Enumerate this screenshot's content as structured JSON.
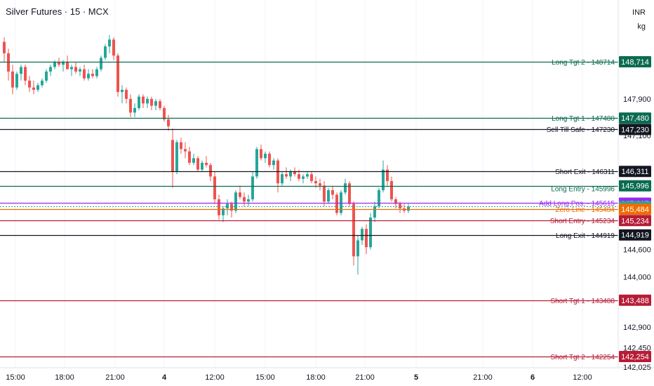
{
  "header": {
    "title": "Silver Futures · 15 · MCX"
  },
  "axis_units": {
    "currency": "INR",
    "unit": "kg"
  },
  "chart_data": {
    "type": "candlestick",
    "title": "Silver Futures · 15 · MCX",
    "ylim": [
      141800,
      149700
    ],
    "price_ticks": [
      "147,900",
      "147,100",
      "144,600",
      "144,000",
      "142,900",
      "142,450",
      "142,025"
    ],
    "price_tick_values": [
      147900,
      147100,
      144600,
      144000,
      142900,
      142450,
      142025
    ],
    "time_ticks": [
      "15:00",
      "18:00",
      "21:00",
      "4",
      "12:00",
      "15:00",
      "18:00",
      "21:00",
      "5",
      "21:00",
      "6",
      "12:00"
    ],
    "time_tick_bold": [
      false,
      false,
      false,
      true,
      false,
      false,
      false,
      false,
      true,
      false,
      true,
      false
    ],
    "levels": [
      {
        "label": "Long Tgt 2 - 148714",
        "value": 148714,
        "tag": "148,714",
        "color": "#0a6b50",
        "style": "solid"
      },
      {
        "label": "Long Tgt 1 - 147480",
        "value": 147480,
        "tag": "147,480",
        "color": "#0a6b50",
        "style": "solid"
      },
      {
        "label": "Sell Till Safe - 147230",
        "value": 147230,
        "tag": "147,230",
        "color": "#131722",
        "style": "solid"
      },
      {
        "label": "Short Exit - 146311",
        "value": 146311,
        "tag": "146,311",
        "color": "#131722",
        "style": "solid"
      },
      {
        "label": "",
        "value": 145996,
        "tag": "145,996",
        "color": "#0a6b50",
        "style": "solid"
      },
      {
        "label": "Long Entry - 145996",
        "value": 145996,
        "tag": "",
        "color": "#0a6b50",
        "style": "none"
      },
      {
        "label": "Add Long Pos. - 145615",
        "value": 145615,
        "tag": "145,615",
        "color": "#9c27f0",
        "style": "solid"
      },
      {
        "label": "",
        "value": 145540,
        "tag": "145,540",
        "color": "#26a69a",
        "style": "dotted"
      },
      {
        "label": "Zero Line - 145484",
        "value": 145484,
        "tag": "145,484",
        "color": "#ef6c00",
        "style": "solid"
      },
      {
        "label": "Short Entry - 145234",
        "value": 145234,
        "tag": "145,234",
        "color": "#b71c36",
        "style": "solid"
      },
      {
        "label": "Long Exit - 144919",
        "value": 144919,
        "tag": "144,919",
        "color": "#131722",
        "style": "solid"
      },
      {
        "label": "Short Tgt 1 - 143488",
        "value": 143488,
        "tag": "143,488",
        "color": "#b71c36",
        "style": "solid"
      },
      {
        "label": "Short Tgt 2 - 142254",
        "value": 142254,
        "tag": "142,254",
        "color": "#b71c36",
        "style": "solid"
      }
    ],
    "ohlc": [
      [
        149150,
        149250,
        148700,
        148900
      ],
      [
        148900,
        149000,
        148300,
        148500
      ],
      [
        148500,
        148650,
        148000,
        148150
      ],
      [
        148150,
        148500,
        148100,
        148450
      ],
      [
        148450,
        148650,
        148300,
        148600
      ],
      [
        148600,
        148650,
        148200,
        148300
      ],
      [
        148300,
        148400,
        148050,
        148150
      ],
      [
        148150,
        148300,
        148000,
        148100
      ],
      [
        148100,
        148250,
        148050,
        148200
      ],
      [
        148200,
        148350,
        148150,
        148300
      ],
      [
        148300,
        148550,
        148250,
        148500
      ],
      [
        148500,
        148650,
        148400,
        148600
      ],
      [
        148600,
        148750,
        148550,
        148700
      ],
      [
        148700,
        148800,
        148600,
        148650
      ],
      [
        148650,
        148750,
        148500,
        148700
      ],
      [
        148700,
        148850,
        148550,
        148550
      ],
      [
        148550,
        148650,
        148400,
        148600
      ],
      [
        148600,
        148700,
        148450,
        148500
      ],
      [
        148500,
        148600,
        148400,
        148550
      ],
      [
        148550,
        148650,
        148300,
        148350
      ],
      [
        148350,
        148550,
        148300,
        148450
      ],
      [
        148450,
        148550,
        148350,
        148400
      ],
      [
        148400,
        148600,
        148350,
        148550
      ],
      [
        148550,
        148850,
        148500,
        148800
      ],
      [
        148800,
        149100,
        148750,
        149050
      ],
      [
        149050,
        149300,
        148900,
        149200
      ],
      [
        149200,
        149250,
        148750,
        148850
      ],
      [
        148850,
        148900,
        147950,
        148050
      ],
      [
        148050,
        148200,
        147800,
        148100
      ],
      [
        148100,
        148150,
        147800,
        147900
      ],
      [
        147900,
        148000,
        147500,
        147600
      ],
      [
        147600,
        147800,
        147500,
        147700
      ],
      [
        147700,
        148000,
        147650,
        147950
      ],
      [
        147950,
        148000,
        147700,
        147800
      ],
      [
        147800,
        147950,
        147700,
        147900
      ],
      [
        147900,
        147950,
        147650,
        147750
      ],
      [
        147750,
        147900,
        147650,
        147850
      ],
      [
        147850,
        147900,
        147650,
        147700
      ],
      [
        147700,
        147750,
        147400,
        147450
      ],
      [
        147450,
        147550,
        147200,
        147300
      ],
      [
        147000,
        147250,
        145950,
        146300
      ],
      [
        146300,
        147000,
        146250,
        146950
      ],
      [
        146950,
        147050,
        146700,
        146800
      ],
      [
        146800,
        146950,
        146600,
        146750
      ],
      [
        146750,
        146850,
        146450,
        146500
      ],
      [
        146500,
        146700,
        146450,
        146600
      ],
      [
        146600,
        146650,
        146300,
        146350
      ],
      [
        146350,
        146550,
        146300,
        146500
      ],
      [
        146500,
        146650,
        146400,
        146450
      ],
      [
        146450,
        146500,
        146100,
        146200
      ],
      [
        146200,
        146300,
        145600,
        145700
      ],
      [
        145700,
        145800,
        145250,
        145350
      ],
      [
        145350,
        145550,
        145200,
        145500
      ],
      [
        145500,
        145700,
        145350,
        145600
      ],
      [
        145600,
        145650,
        145300,
        145450
      ],
      [
        145450,
        145900,
        145400,
        145850
      ],
      [
        145850,
        146000,
        145700,
        145750
      ],
      [
        145750,
        145850,
        145550,
        145650
      ],
      [
        145650,
        145800,
        145550,
        145700
      ],
      [
        145700,
        146300,
        145650,
        146200
      ],
      [
        146200,
        146850,
        146150,
        146800
      ],
      [
        146800,
        146900,
        146550,
        146600
      ],
      [
        146600,
        146750,
        146500,
        146700
      ],
      [
        146700,
        146750,
        146400,
        146450
      ],
      [
        146450,
        146600,
        146350,
        146550
      ],
      [
        146550,
        146600,
        145850,
        146050
      ],
      [
        146050,
        146300,
        146000,
        146250
      ],
      [
        146250,
        146400,
        146150,
        146200
      ],
      [
        146200,
        146350,
        146100,
        146300
      ],
      [
        146300,
        146400,
        146200,
        146250
      ],
      [
        146250,
        146350,
        146100,
        146150
      ],
      [
        146150,
        146250,
        146050,
        146200
      ],
      [
        146200,
        146300,
        146150,
        146250
      ],
      [
        146250,
        146300,
        146050,
        146100
      ],
      [
        146100,
        146200,
        145950,
        146050
      ],
      [
        146050,
        146150,
        145900,
        146000
      ],
      [
        146000,
        146100,
        145550,
        145650
      ],
      [
        145650,
        145950,
        145600,
        145900
      ],
      [
        145900,
        146000,
        145700,
        145800
      ],
      [
        145800,
        145850,
        145350,
        145400
      ],
      [
        145400,
        145900,
        145350,
        145850
      ],
      [
        145850,
        146150,
        145800,
        146050
      ],
      [
        146050,
        146100,
        145550,
        145600
      ],
      [
        145600,
        145650,
        144250,
        144450
      ],
      [
        144450,
        144900,
        144050,
        144800
      ],
      [
        144800,
        145100,
        144700,
        145050
      ],
      [
        145050,
        145150,
        144500,
        144650
      ],
      [
        144650,
        145400,
        144600,
        145300
      ],
      [
        145300,
        145650,
        145200,
        145550
      ],
      [
        145550,
        145950,
        145500,
        145900
      ],
      [
        145900,
        146550,
        145850,
        146350
      ],
      [
        146350,
        146450,
        146000,
        146100
      ],
      [
        146100,
        146200,
        145650,
        145700
      ],
      [
        145700,
        145750,
        145500,
        145600
      ],
      [
        145600,
        145650,
        145400,
        145500
      ],
      [
        145500,
        145600,
        145400,
        145450
      ],
      [
        145450,
        145600,
        145400,
        145540
      ]
    ]
  }
}
